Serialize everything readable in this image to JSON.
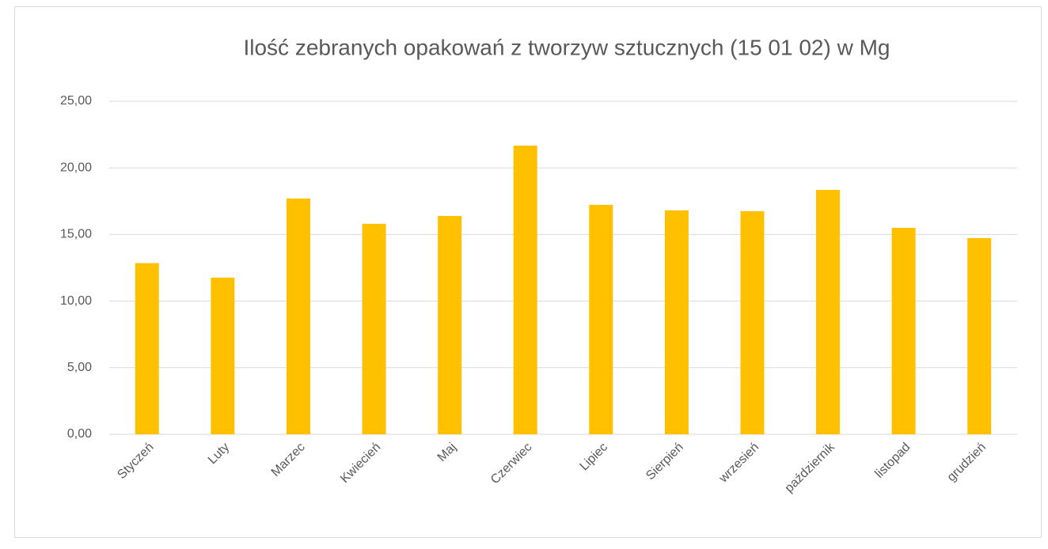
{
  "chart_data": {
    "type": "bar",
    "title": "Ilość zebranych opakowań z tworzyw sztucznych (15 01 02) w Mg",
    "categories": [
      "Styczeń",
      "Luty",
      "Marzec",
      "Kwiecień",
      "Maj",
      "Czerwiec",
      "Lipiec",
      "Sierpień",
      "wrzesień",
      "październik",
      "listopad",
      "grudzień"
    ],
    "values": [
      12.85,
      11.76,
      17.7,
      15.8,
      16.39,
      21.67,
      17.22,
      16.81,
      16.75,
      18.35,
      15.5,
      14.73
    ],
    "color": "#ffc000",
    "ylim": [
      0,
      25
    ],
    "yticks": [
      {
        "value": 0,
        "label": "0,00"
      },
      {
        "value": 5,
        "label": "5,00"
      },
      {
        "value": 10,
        "label": "10,00"
      },
      {
        "value": 15,
        "label": "15,00"
      },
      {
        "value": 20,
        "label": "20,00"
      },
      {
        "value": 25,
        "label": "25,00"
      }
    ],
    "grid": true
  }
}
